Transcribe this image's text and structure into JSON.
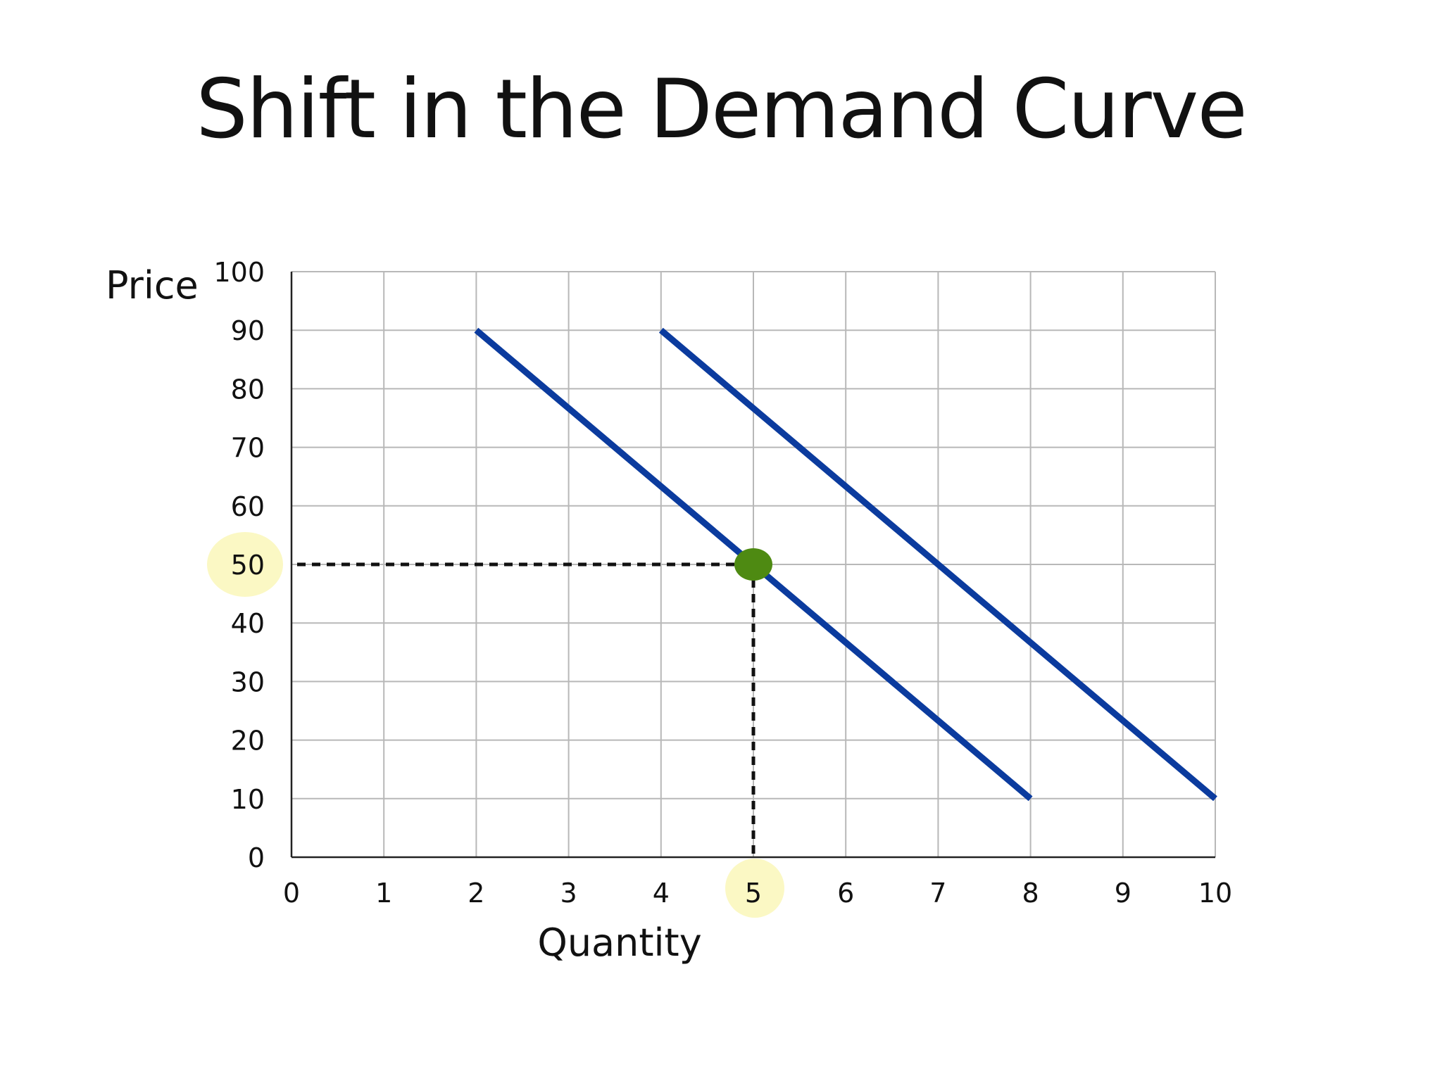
{
  "slide": {
    "title": "Shift in the Demand Curve"
  },
  "colors": {
    "demand_line": "#0b3b9e",
    "equilibrium_point": "#4e8a12",
    "highlight": "#fbf8c4",
    "grid": "#b8b8b8",
    "axis": "#222222",
    "guide": "#111111"
  },
  "chart_data": {
    "type": "line",
    "title": "Shift in the Demand Curve",
    "xlabel": "Quantity",
    "ylabel": "Price",
    "xlim": [
      0,
      10
    ],
    "ylim": [
      0,
      100
    ],
    "x_ticks": [
      0,
      1,
      2,
      3,
      4,
      5,
      6,
      7,
      8,
      9,
      10
    ],
    "y_ticks": [
      0,
      10,
      20,
      30,
      40,
      50,
      60,
      70,
      80,
      90,
      100
    ],
    "grid": true,
    "legend": "none",
    "series": [
      {
        "values": [
          [
            2,
            90
          ],
          [
            8,
            10
          ]
        ]
      },
      {
        "values": [
          [
            4,
            90
          ],
          [
            10,
            10
          ]
        ]
      }
    ],
    "marker_point": {
      "x": 5,
      "y": 50
    },
    "guide_lines": [
      {
        "from": [
          0,
          50
        ],
        "to": [
          5,
          50
        ],
        "style": "dashed"
      },
      {
        "from": [
          5,
          50
        ],
        "to": [
          5,
          0
        ],
        "style": "dashed"
      }
    ],
    "highlighted_ticks": {
      "x": [
        5
      ],
      "y": [
        50
      ]
    }
  }
}
